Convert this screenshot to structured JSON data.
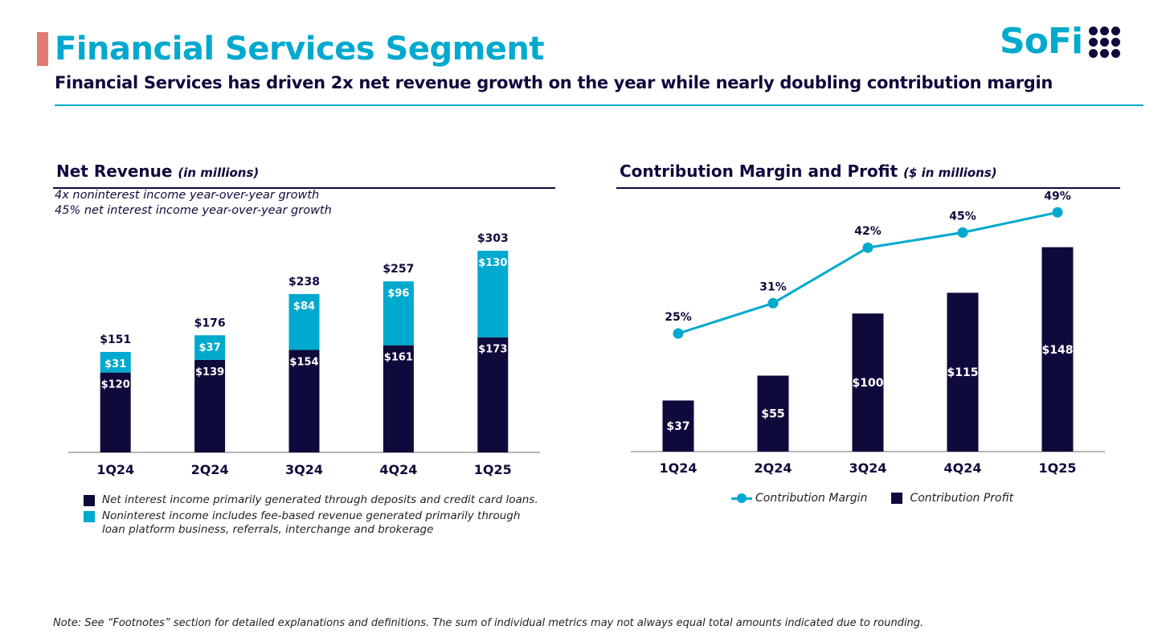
{
  "header": {
    "title": "Financial Services Segment",
    "subtitle": "Financial Services has driven 2x net revenue growth on the year while nearly doubling contribution margin",
    "logo_text": "SoFi"
  },
  "colors": {
    "navy": "#0f0a3c",
    "teal": "#00a9ce",
    "accent": "#e07a73",
    "footer_text": "#222222"
  },
  "left_panel": {
    "title": "Net Revenue",
    "unit": "(in millions)",
    "notes": [
      "4x noninterest income year-over-year growth",
      "45% net interest income year-over-year growth"
    ],
    "legend": [
      {
        "label": "Net interest income primarily generated through deposits and credit card loans.",
        "color": "#0f0a3c"
      },
      {
        "label": "Noninterest income includes fee-based revenue generated primarily through loan platform business, referrals, interchange and brokerage",
        "color": "#00a9ce"
      }
    ]
  },
  "right_panel": {
    "title": "Contribution Margin and Profit",
    "unit": "($ in millions)",
    "legend": [
      {
        "label": "Contribution Margin",
        "color": "#00a9ce"
      },
      {
        "label": "Contribution Profit",
        "color": "#0f0a3c"
      }
    ]
  },
  "footer": {
    "note": "Note: See “Footnotes” section for detailed explanations and definitions. The sum of individual metrics may not always equal total amounts indicated due to rounding."
  },
  "chart_data": [
    {
      "type": "bar",
      "stacked": true,
      "title": "Net Revenue",
      "categories": [
        "1Q24",
        "2Q24",
        "3Q24",
        "4Q24",
        "1Q25"
      ],
      "series": [
        {
          "name": "Net interest income",
          "values": [
            120,
            139,
            154,
            161,
            173
          ],
          "labels": [
            "$120",
            "$139",
            "$154",
            "$161",
            "$173"
          ],
          "color": "#0f0a3c"
        },
        {
          "name": "Noninterest income",
          "values": [
            31,
            37,
            84,
            96,
            130
          ],
          "labels": [
            "$31",
            "$37",
            "$84",
            "$96",
            "$130"
          ],
          "color": "#00a9ce"
        }
      ],
      "totals": [
        151,
        176,
        238,
        257,
        303
      ],
      "total_labels": [
        "$151",
        "$176",
        "$238",
        "$257",
        "$303"
      ],
      "ylim": [
        0,
        320
      ],
      "grid": false,
      "legend": "bottom"
    },
    {
      "type": "bar",
      "title": "Contribution Margin and Profit",
      "categories": [
        "1Q24",
        "2Q24",
        "3Q24",
        "4Q24",
        "1Q25"
      ],
      "series": [
        {
          "name": "Contribution Profit",
          "type": "bar",
          "values": [
            37,
            55,
            100,
            115,
            148
          ],
          "labels": [
            "$37",
            "$55",
            "$100",
            "$115",
            "$148"
          ],
          "color": "#0f0a3c"
        },
        {
          "name": "Contribution Margin",
          "type": "line",
          "values": [
            25,
            31,
            42,
            45,
            49
          ],
          "labels": [
            "25%",
            "31%",
            "42%",
            "45%",
            "49%"
          ],
          "color": "#00a9ce"
        }
      ],
      "ylim": [
        0,
        160
      ],
      "y2lim": [
        0,
        60
      ],
      "grid": false,
      "legend": "bottom"
    }
  ]
}
